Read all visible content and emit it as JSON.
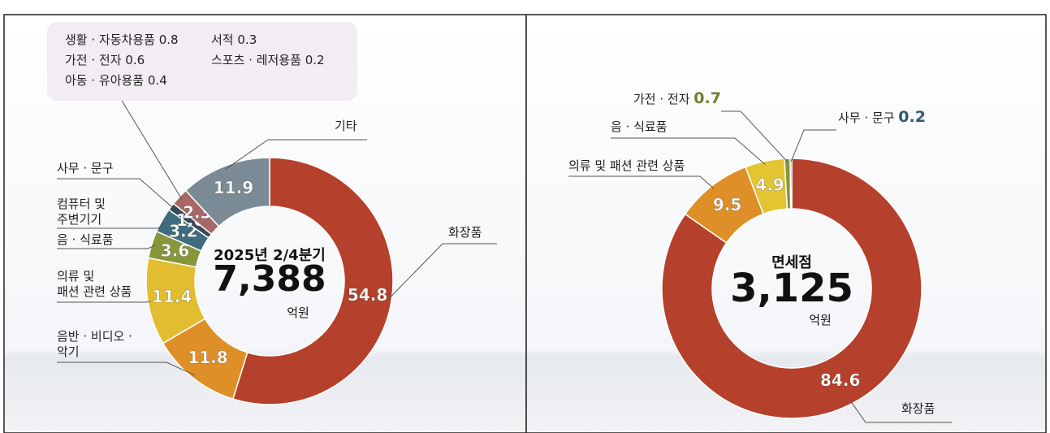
{
  "chart_data": [
    {
      "type": "donut",
      "center_title": "2025년 2/4분기",
      "center_value": "7,388",
      "center_unit": "억원",
      "categories": [
        "화장품",
        "음반 · 비디오 ·\n악기",
        "의류 및\n패션 관련 상품",
        "음 · 식료품",
        "컴퓨터 및\n주변기기",
        "사무 · 문구",
        null,
        "기타"
      ],
      "values": [
        54.8,
        11.8,
        11.4,
        3.6,
        3.2,
        1.0,
        2.3,
        11.9
      ],
      "value_labels": [
        "54.8",
        "11.8",
        "11.4",
        "3.6",
        "3.2",
        "1.0",
        "2.3",
        "11.9"
      ],
      "colors": [
        "#b5402b",
        "#df8f27",
        "#e3bd30",
        "#879638",
        "#3f6c7e",
        "#3b4858",
        "#a66766",
        "#7b8b95"
      ],
      "callout": [
        {
          "name": "생활 · 자동차용품",
          "value": 0.8
        },
        {
          "name": "가전 · 전자",
          "value": 0.6
        },
        {
          "name": "아동 · 유아용품",
          "value": 0.4
        },
        {
          "name": "서적",
          "value": 0.3
        },
        {
          "name": "스포츠 · 레저용품",
          "value": 0.2
        }
      ]
    },
    {
      "type": "donut",
      "center_title": "면세점",
      "center_value": "3,125",
      "center_unit": "억원",
      "categories": [
        "화장품",
        "의류 및 패션 관련 상품",
        "음 · 식료품",
        "가전 · 전자",
        "사무 · 문구"
      ],
      "values": [
        84.6,
        9.5,
        4.9,
        0.7,
        0.2
      ],
      "colors": [
        "#b5402b",
        "#df8f27",
        "#e3c532",
        "#879638",
        "#3f6c7e"
      ]
    }
  ]
}
